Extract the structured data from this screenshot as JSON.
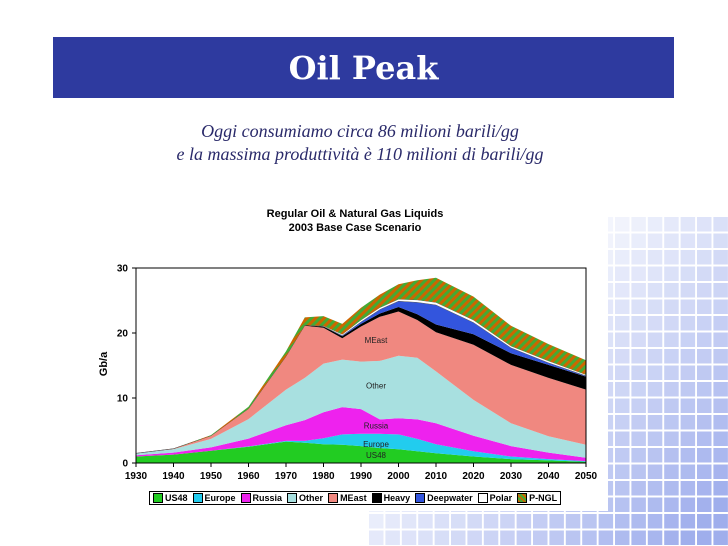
{
  "slide": {
    "title": "Oil Peak",
    "subtitle_line1": "Oggi consumiamo circa 86 milioni barili/gg",
    "subtitle_line2": "e la massima produttività è 110 milioni di barili/gg"
  },
  "colors": {
    "title_bar": "#2e3a9f",
    "US48": "#22cc22",
    "Europe": "#22ccee",
    "Russia": "#ee22ee",
    "Other": "#a8e0e0",
    "MEast": "#f08880",
    "Heavy": "#000000",
    "Deepwater": "#3355dd",
    "Polar": "#ffffff",
    "P-NGL": "#cc6600"
  },
  "chart_data": {
    "type": "area",
    "title": "Regular Oil & Natural Gas Liquids",
    "subtitle": "2003 Base Case Scenario",
    "ylabel": "Gb/a",
    "xlabel": "",
    "ylim": [
      0,
      30
    ],
    "xlim": [
      1930,
      2050
    ],
    "yticks": [
      "0",
      "10",
      "20",
      "30"
    ],
    "xticks": [
      "1930",
      "1940",
      "1950",
      "1960",
      "1970",
      "1980",
      "1990",
      "2000",
      "2010",
      "2020",
      "2030",
      "2040",
      "2050"
    ],
    "grid": false,
    "legend_position": "bottom",
    "x": [
      1930,
      1940,
      1950,
      1960,
      1970,
      1975,
      1980,
      1985,
      1990,
      1995,
      2000,
      2005,
      2010,
      2020,
      2030,
      2040,
      2050
    ],
    "series": [
      {
        "name": "US48",
        "values": [
          1.0,
          1.3,
          1.9,
          2.5,
          3.3,
          3.1,
          2.9,
          2.8,
          2.6,
          2.3,
          2.1,
          1.8,
          1.5,
          1.0,
          0.6,
          0.4,
          0.2
        ]
      },
      {
        "name": "Europe",
        "values": [
          0.0,
          0.0,
          0.0,
          0.05,
          0.1,
          0.3,
          0.9,
          1.6,
          1.9,
          2.2,
          2.3,
          1.9,
          1.4,
          0.8,
          0.4,
          0.2,
          0.1
        ]
      },
      {
        "name": "Russia",
        "values": [
          0.2,
          0.3,
          0.5,
          1.2,
          2.4,
          3.2,
          4.0,
          4.2,
          3.8,
          2.2,
          2.5,
          3.0,
          3.2,
          2.4,
          1.6,
          1.0,
          0.5
        ]
      },
      {
        "name": "Other",
        "values": [
          0.3,
          0.5,
          1.3,
          3.0,
          5.5,
          6.5,
          7.5,
          7.3,
          7.3,
          9.0,
          9.6,
          9.5,
          8.0,
          5.5,
          3.5,
          2.5,
          2.0
        ]
      },
      {
        "name": "MEast",
        "values": [
          0.0,
          0.1,
          0.5,
          1.6,
          5.1,
          8.0,
          5.5,
          3.3,
          5.4,
          6.8,
          6.8,
          5.8,
          6.0,
          8.5,
          9.0,
          9.0,
          8.5
        ]
      },
      {
        "name": "Heavy",
        "values": [
          0.0,
          0.0,
          0.0,
          0.0,
          0.0,
          0.1,
          0.2,
          0.3,
          0.4,
          0.5,
          0.7,
          0.9,
          1.2,
          1.6,
          1.8,
          2.0,
          2.0
        ]
      },
      {
        "name": "Deepwater",
        "values": [
          0.0,
          0.0,
          0.0,
          0.0,
          0.0,
          0.0,
          0.0,
          0.1,
          0.3,
          0.6,
          0.9,
          1.8,
          3.0,
          1.8,
          0.8,
          0.3,
          0.1
        ]
      },
      {
        "name": "Polar",
        "values": [
          0.0,
          0.0,
          0.0,
          0.0,
          0.0,
          0.0,
          0.1,
          0.2,
          0.3,
          0.3,
          0.3,
          0.4,
          0.4,
          0.4,
          0.3,
          0.3,
          0.2
        ]
      },
      {
        "name": "P-NGL",
        "values": [
          0.0,
          0.0,
          0.1,
          0.3,
          0.8,
          1.2,
          1.5,
          1.6,
          1.9,
          2.0,
          2.3,
          3.0,
          3.8,
          3.6,
          3.1,
          2.6,
          2.2
        ]
      }
    ],
    "area_labels": [
      {
        "text": "MEast",
        "x": 1994,
        "y": 18.5
      },
      {
        "text": "Other",
        "x": 1994,
        "y": 11.5
      },
      {
        "text": "Russia",
        "x": 1994,
        "y": 5.3
      },
      {
        "text": "Europe",
        "x": 1994,
        "y": 2.5
      },
      {
        "text": "US48",
        "x": 1994,
        "y": 0.8
      }
    ]
  }
}
